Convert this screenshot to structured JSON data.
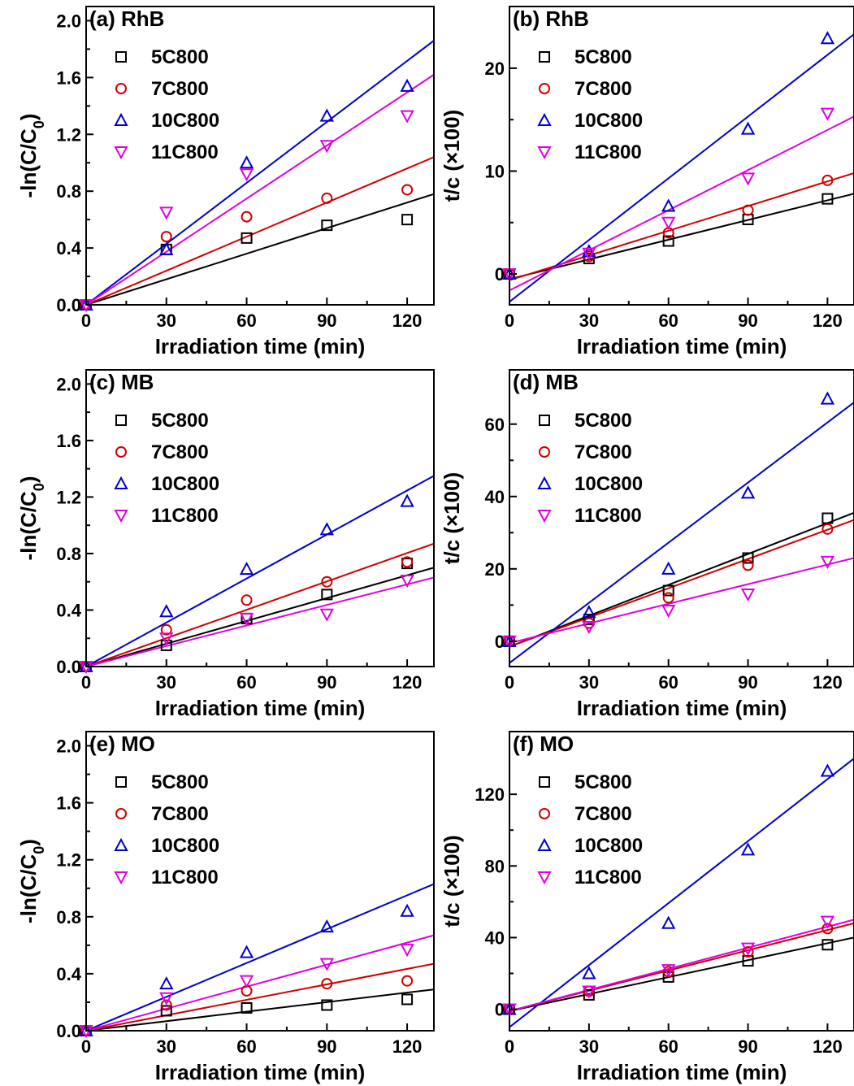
{
  "chart_data": [
    {
      "type": "scatter",
      "panel": "(a) RhB",
      "xlabel": "Irradiation time (min)",
      "ylabel": "-ln(C/C0)",
      "ylabel_base": "-ln(C/C",
      "ylabel_sub": "0",
      "ylabel_close": ")",
      "xlim": [
        0,
        130
      ],
      "ylim": [
        0,
        2.1
      ],
      "xticks": [
        0,
        30,
        60,
        90,
        120
      ],
      "xtick_labels": [
        "0",
        "30",
        "60",
        "90",
        "120"
      ],
      "yticks": [
        0,
        0.4,
        0.8,
        1.2,
        1.6,
        2.0
      ],
      "ytick_labels": [
        "0.0",
        "0.4",
        "0.8",
        "1.2",
        "1.6",
        "2.0"
      ],
      "legend_position": "top-left",
      "grid": false,
      "series": [
        {
          "name": "5C800",
          "marker": "square",
          "color": "#000000",
          "x": [
            0,
            30,
            60,
            90,
            120
          ],
          "y": [
            0,
            0.39,
            0.47,
            0.56,
            0.6
          ],
          "fit": [
            [
              0,
              0
            ],
            [
              130,
              0.78
            ]
          ]
        },
        {
          "name": "7C800",
          "marker": "circle",
          "color": "#d00000",
          "x": [
            0,
            30,
            60,
            90,
            120
          ],
          "y": [
            0,
            0.48,
            0.62,
            0.75,
            0.81
          ],
          "fit": [
            [
              0,
              0
            ],
            [
              130,
              1.04
            ]
          ]
        },
        {
          "name": "10C800",
          "marker": "triangle-up",
          "color": "#0000cc",
          "x": [
            0,
            30,
            60,
            90,
            120
          ],
          "y": [
            0,
            0.39,
            1.0,
            1.33,
            1.54
          ],
          "fit": [
            [
              0,
              0
            ],
            [
              130,
              1.86
            ]
          ]
        },
        {
          "name": "11C800",
          "marker": "triangle-down",
          "color": "#e000e0",
          "x": [
            0,
            30,
            60,
            90,
            120
          ],
          "y": [
            0,
            0.65,
            0.92,
            1.12,
            1.33
          ],
          "fit": [
            [
              0,
              0
            ],
            [
              130,
              1.62
            ]
          ]
        }
      ]
    },
    {
      "type": "scatter",
      "panel": "(b) RhB",
      "xlabel": "Irradiation time (min)",
      "ylabel": "t/c (×100)",
      "xlim": [
        0,
        130
      ],
      "ylim": [
        -3,
        26
      ],
      "xticks": [
        0,
        30,
        60,
        90,
        120
      ],
      "xtick_labels": [
        "0",
        "30",
        "60",
        "90",
        "120"
      ],
      "yticks": [
        0,
        10,
        20
      ],
      "ytick_labels": [
        "0",
        "10",
        "20"
      ],
      "legend_position": "top-left",
      "grid": false,
      "series": [
        {
          "name": "5C800",
          "marker": "square",
          "color": "#000000",
          "x": [
            0,
            30,
            60,
            90,
            120
          ],
          "y": [
            0,
            1.5,
            3.2,
            5.3,
            7.3
          ],
          "fit": [
            [
              0,
              -0.5
            ],
            [
              130,
              7.8
            ]
          ]
        },
        {
          "name": "7C800",
          "marker": "circle",
          "color": "#d00000",
          "x": [
            0,
            30,
            60,
            90,
            120
          ],
          "y": [
            0,
            1.7,
            4.0,
            6.2,
            9.1
          ],
          "fit": [
            [
              0,
              -0.6
            ],
            [
              130,
              9.8
            ]
          ]
        },
        {
          "name": "10C800",
          "marker": "triangle-up",
          "color": "#0000cc",
          "x": [
            0,
            30,
            60,
            90,
            120
          ],
          "y": [
            0,
            2.2,
            6.6,
            14.1,
            22.9
          ],
          "fit": [
            [
              0,
              -2.7
            ],
            [
              130,
              23.3
            ]
          ]
        },
        {
          "name": "11C800",
          "marker": "triangle-down",
          "color": "#e000e0",
          "x": [
            0,
            30,
            60,
            90,
            120
          ],
          "y": [
            0,
            2.0,
            5.0,
            9.3,
            15.6
          ],
          "fit": [
            [
              0,
              -1.6
            ],
            [
              130,
              15.3
            ]
          ]
        }
      ]
    },
    {
      "type": "scatter",
      "panel": "(c) MB",
      "xlabel": "Irradiation time (min)",
      "ylabel": "-ln(C/C0)",
      "ylabel_base": "-ln(C/C",
      "ylabel_sub": "0",
      "ylabel_close": ")",
      "xlim": [
        0,
        130
      ],
      "ylim": [
        0,
        2.1
      ],
      "xticks": [
        0,
        30,
        60,
        90,
        120
      ],
      "xtick_labels": [
        "0",
        "30",
        "60",
        "90",
        "120"
      ],
      "yticks": [
        0,
        0.4,
        0.8,
        1.2,
        1.6,
        2.0
      ],
      "ytick_labels": [
        "0.0",
        "0.4",
        "0.8",
        "1.2",
        "1.6",
        "2.0"
      ],
      "legend_position": "top-left",
      "grid": false,
      "series": [
        {
          "name": "5C800",
          "marker": "square",
          "color": "#000000",
          "x": [
            0,
            30,
            60,
            90,
            120
          ],
          "y": [
            0,
            0.15,
            0.34,
            0.51,
            0.73
          ],
          "fit": [
            [
              0,
              0
            ],
            [
              130,
              0.7
            ]
          ]
        },
        {
          "name": "7C800",
          "marker": "circle",
          "color": "#d00000",
          "x": [
            0,
            30,
            60,
            90,
            120
          ],
          "y": [
            0,
            0.26,
            0.47,
            0.6,
            0.74
          ],
          "fit": [
            [
              0,
              0
            ],
            [
              130,
              0.87
            ]
          ]
        },
        {
          "name": "10C800",
          "marker": "triangle-up",
          "color": "#0000cc",
          "x": [
            0,
            30,
            60,
            90,
            120
          ],
          "y": [
            0,
            0.39,
            0.69,
            0.97,
            1.17
          ],
          "fit": [
            [
              0,
              0
            ],
            [
              130,
              1.35
            ]
          ]
        },
        {
          "name": "11C800",
          "marker": "triangle-down",
          "color": "#e000e0",
          "x": [
            0,
            30,
            60,
            90,
            120
          ],
          "y": [
            0,
            0.2,
            0.34,
            0.37,
            0.61
          ],
          "fit": [
            [
              0,
              0
            ],
            [
              130,
              0.63
            ]
          ]
        }
      ]
    },
    {
      "type": "scatter",
      "panel": "(d) MB",
      "xlabel": "Irradiation time (min)",
      "ylabel": "t/c (×100)",
      "xlim": [
        0,
        130
      ],
      "ylim": [
        -7,
        75
      ],
      "xticks": [
        0,
        30,
        60,
        90,
        120
      ],
      "xtick_labels": [
        "0",
        "30",
        "60",
        "90",
        "120"
      ],
      "yticks": [
        0,
        20,
        40,
        60
      ],
      "ytick_labels": [
        "0",
        "20",
        "40",
        "60"
      ],
      "legend_position": "top-left",
      "grid": false,
      "series": [
        {
          "name": "5C800",
          "marker": "square",
          "color": "#000000",
          "x": [
            0,
            30,
            60,
            90,
            120
          ],
          "y": [
            0,
            6,
            14,
            23,
            34
          ],
          "fit": [
            [
              0,
              -1.5
            ],
            [
              130,
              35.5
            ]
          ]
        },
        {
          "name": "7C800",
          "marker": "circle",
          "color": "#d00000",
          "x": [
            0,
            30,
            60,
            90,
            120
          ],
          "y": [
            0,
            5,
            12,
            21,
            31
          ],
          "fit": [
            [
              0,
              -1.5
            ],
            [
              130,
              33.5
            ]
          ]
        },
        {
          "name": "10C800",
          "marker": "triangle-up",
          "color": "#0000cc",
          "x": [
            0,
            30,
            60,
            90,
            120
          ],
          "y": [
            0,
            8,
            20,
            41,
            67
          ],
          "fit": [
            [
              0,
              -6
            ],
            [
              130,
              66
            ]
          ]
        },
        {
          "name": "11C800",
          "marker": "triangle-down",
          "color": "#e000e0",
          "x": [
            0,
            30,
            60,
            90,
            120
          ],
          "y": [
            0,
            4,
            8.5,
            13,
            22
          ],
          "fit": [
            [
              0,
              -0.5
            ],
            [
              130,
              23
            ]
          ]
        }
      ]
    },
    {
      "type": "scatter",
      "panel": "(e) MO",
      "xlabel": "Irradiation time (min)",
      "ylabel": "-ln(C/C0)",
      "ylabel_base": "-ln(C/C",
      "ylabel_sub": "0",
      "ylabel_close": ")",
      "xlim": [
        0,
        130
      ],
      "ylim": [
        0,
        2.1
      ],
      "xticks": [
        0,
        30,
        60,
        90,
        120
      ],
      "xtick_labels": [
        "0",
        "30",
        "60",
        "90",
        "120"
      ],
      "yticks": [
        0,
        0.4,
        0.8,
        1.2,
        1.6,
        2.0
      ],
      "ytick_labels": [
        "0.0",
        "0.4",
        "0.8",
        "1.2",
        "1.6",
        "2.0"
      ],
      "legend_position": "top-left",
      "grid": false,
      "series": [
        {
          "name": "5C800",
          "marker": "square",
          "color": "#000000",
          "x": [
            0,
            30,
            60,
            90,
            120
          ],
          "y": [
            0,
            0.14,
            0.16,
            0.18,
            0.22
          ],
          "fit": [
            [
              0,
              0
            ],
            [
              130,
              0.29
            ]
          ]
        },
        {
          "name": "7C800",
          "marker": "circle",
          "color": "#d00000",
          "x": [
            0,
            30,
            60,
            90,
            120
          ],
          "y": [
            0,
            0.18,
            0.28,
            0.33,
            0.35
          ],
          "fit": [
            [
              0,
              0
            ],
            [
              130,
              0.47
            ]
          ]
        },
        {
          "name": "10C800",
          "marker": "triangle-up",
          "color": "#0000cc",
          "x": [
            0,
            30,
            60,
            90,
            120
          ],
          "y": [
            0,
            0.33,
            0.55,
            0.73,
            0.84
          ],
          "fit": [
            [
              0,
              0
            ],
            [
              130,
              1.03
            ]
          ]
        },
        {
          "name": "11C800",
          "marker": "triangle-down",
          "color": "#e000e0",
          "x": [
            0,
            30,
            60,
            90,
            120
          ],
          "y": [
            0,
            0.23,
            0.35,
            0.47,
            0.57
          ],
          "fit": [
            [
              0,
              0
            ],
            [
              130,
              0.67
            ]
          ]
        }
      ]
    },
    {
      "type": "scatter",
      "panel": "(f) MO",
      "xlabel": "Irradiation time (min)",
      "ylabel": "t/c (×100)",
      "xlim": [
        0,
        130
      ],
      "ylim": [
        -12,
        155
      ],
      "xticks": [
        0,
        30,
        60,
        90,
        120
      ],
      "xtick_labels": [
        "0",
        "30",
        "60",
        "90",
        "120"
      ],
      "yticks": [
        0,
        40,
        80,
        120
      ],
      "ytick_labels": [
        "0",
        "40",
        "80",
        "120"
      ],
      "legend_position": "top-left",
      "grid": false,
      "series": [
        {
          "name": "5C800",
          "marker": "square",
          "color": "#000000",
          "x": [
            0,
            30,
            60,
            90,
            120
          ],
          "y": [
            0,
            8,
            18,
            27,
            36
          ],
          "fit": [
            [
              0,
              -1
            ],
            [
              130,
              40
            ]
          ]
        },
        {
          "name": "7C800",
          "marker": "circle",
          "color": "#d00000",
          "x": [
            0,
            30,
            60,
            90,
            120
          ],
          "y": [
            0,
            10,
            21,
            32,
            45
          ],
          "fit": [
            [
              0,
              -1
            ],
            [
              130,
              48
            ]
          ]
        },
        {
          "name": "10C800",
          "marker": "triangle-up",
          "color": "#0000cc",
          "x": [
            0,
            30,
            60,
            90,
            120
          ],
          "y": [
            0,
            20,
            48,
            89,
            133
          ],
          "fit": [
            [
              0,
              -10
            ],
            [
              130,
              140
            ]
          ]
        },
        {
          "name": "11C800",
          "marker": "triangle-down",
          "color": "#e000e0",
          "x": [
            0,
            30,
            60,
            90,
            120
          ],
          "y": [
            0,
            10,
            22,
            34,
            49
          ],
          "fit": [
            [
              0,
              -1
            ],
            [
              130,
              50
            ]
          ]
        }
      ]
    }
  ]
}
